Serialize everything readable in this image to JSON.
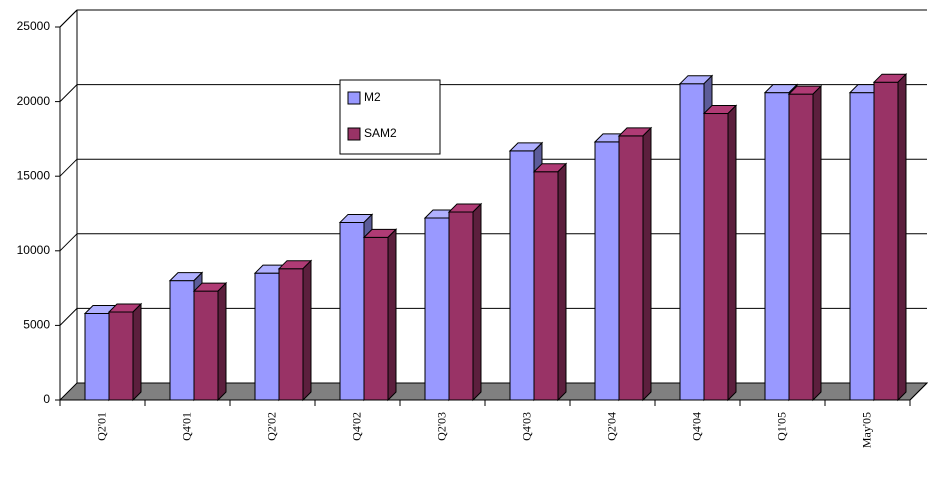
{
  "chart_data": {
    "type": "bar3d",
    "categories": [
      "Q2'01",
      "Q4'01",
      "Q2'02",
      "Q4'02",
      "Q2'03",
      "Q4'03",
      "Q2'04",
      "Q4'04",
      "Q1'05",
      "May'05"
    ],
    "series": [
      {
        "name": "M2",
        "color": "#9999ff",
        "values": [
          5800,
          8000,
          8500,
          11900,
          12200,
          16700,
          17300,
          21200,
          20600,
          20600
        ]
      },
      {
        "name": "SAM2",
        "color": "#993366",
        "values": [
          5900,
          7300,
          8800,
          10900,
          12600,
          15300,
          17700,
          19200,
          20500,
          21300
        ]
      }
    ],
    "ylim": [
      0,
      25000
    ],
    "yticks": [
      0,
      5000,
      10000,
      15000,
      20000,
      25000
    ],
    "grid": true
  }
}
